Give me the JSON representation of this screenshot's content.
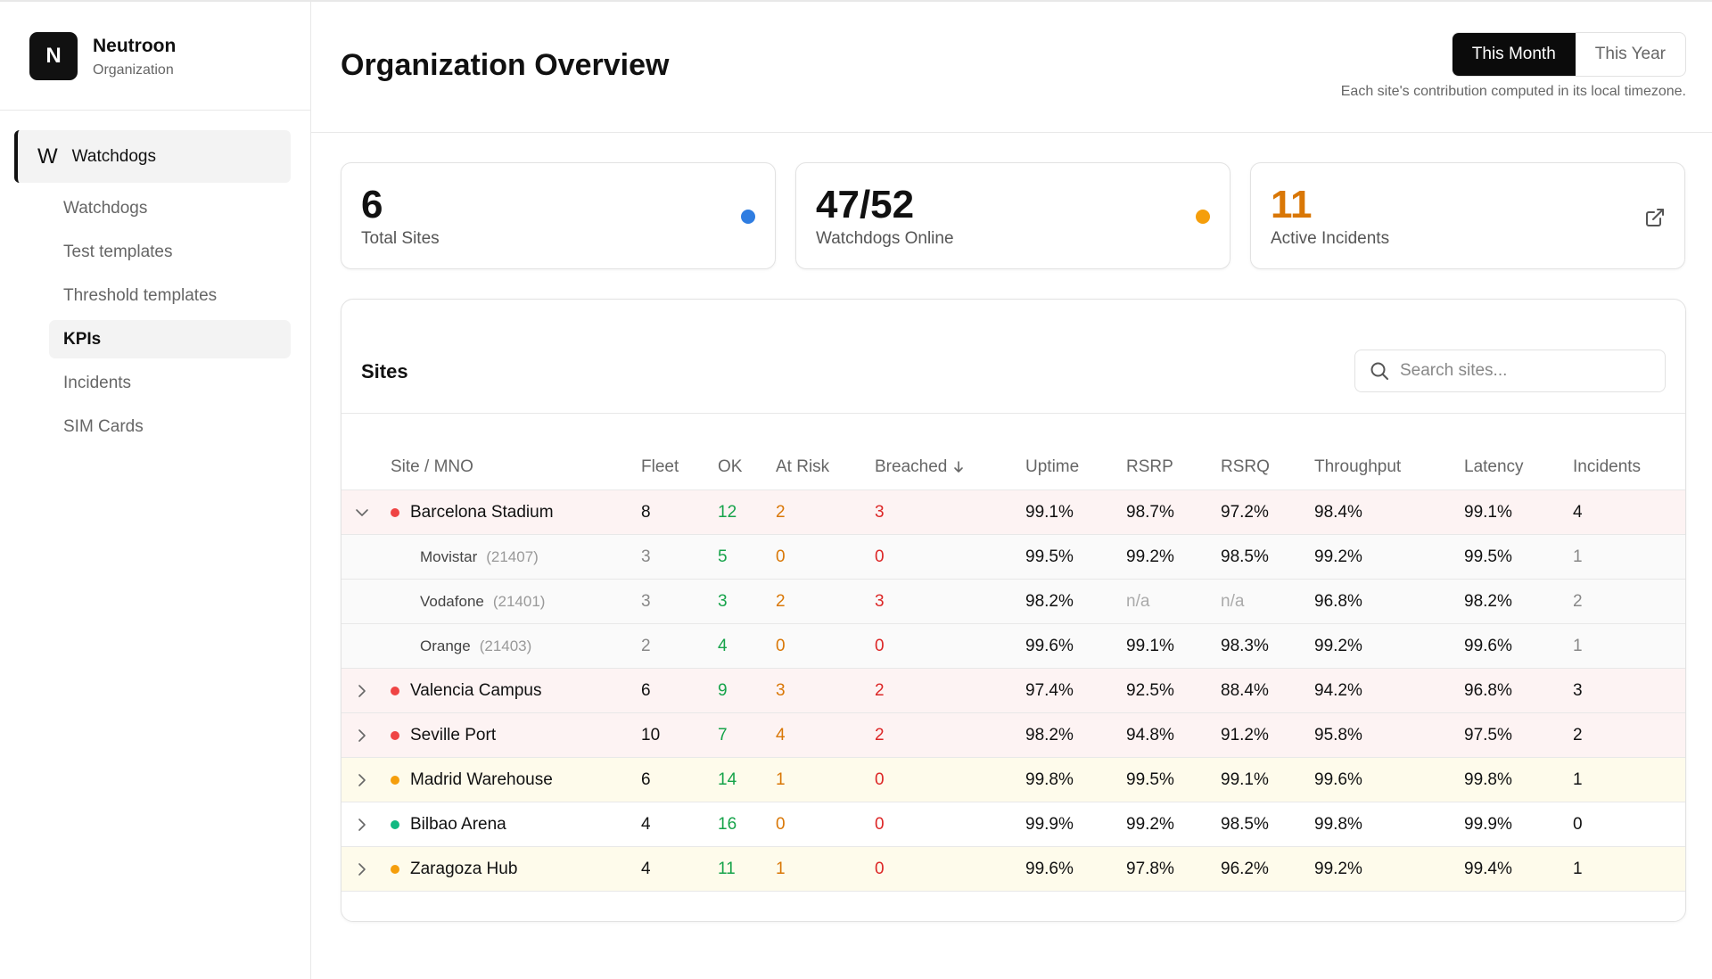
{
  "sidebar": {
    "logo": "N",
    "org_name": "Neutroon",
    "org_subtitle": "Organization",
    "group": {
      "icon": "W",
      "label": "Watchdogs"
    },
    "items": [
      "Watchdogs",
      "Test templates",
      "Threshold templates",
      "KPIs",
      "Incidents",
      "SIM Cards"
    ],
    "active_item": 3
  },
  "header": {
    "title": "Organization Overview",
    "toggle": [
      "This Month",
      "This Year"
    ],
    "active_toggle": 0,
    "note": "Each site's contribution computed in its local timezone."
  },
  "stats": [
    {
      "value": "6",
      "label": "Total Sites",
      "icon": "dot",
      "accent": "#2f7de1",
      "value_color": "#111111"
    },
    {
      "value": "47/52",
      "label": "Watchdogs Online",
      "icon": "dot",
      "accent": "#f59e0b",
      "value_color": "#111111"
    },
    {
      "value": "11",
      "label": "Active Incidents",
      "icon": "link",
      "accent": "#555555",
      "value_color": "#d97706"
    }
  ],
  "table": {
    "title": "Sites",
    "search_placeholder": "Search sites...",
    "columns": [
      {
        "label": "Site / MNO"
      },
      {
        "label": "Fleet"
      },
      {
        "label": "OK",
        "color": "#16a34a"
      },
      {
        "label": "At Risk",
        "color": "#d97706"
      },
      {
        "label": "Breached",
        "color": "#dc2626",
        "sort": "desc"
      },
      {
        "label": "Uptime"
      },
      {
        "label": "RSRP"
      },
      {
        "label": "RSRQ"
      },
      {
        "label": "Throughput"
      },
      {
        "label": "Latency"
      },
      {
        "label": "Incidents"
      }
    ],
    "rows": [
      {
        "name": "Barcelona Stadium",
        "status": "#ef4444",
        "background": "#fdf3f3",
        "expanded": true,
        "cells": [
          "8",
          "12",
          "2",
          "3",
          "99.1%",
          "98.7%",
          "97.2%",
          "98.4%",
          "99.1%",
          "4"
        ],
        "children": [
          {
            "name": "Movistar",
            "code": "(21407)",
            "cells": [
              "3",
              "5",
              "0",
              "0",
              "99.5%",
              "99.2%",
              "98.5%",
              "99.2%",
              "99.5%",
              "1"
            ]
          },
          {
            "name": "Vodafone",
            "code": "(21401)",
            "cells": [
              "3",
              "3",
              "2",
              "3",
              "98.2%",
              "n/a",
              "n/a",
              "96.8%",
              "98.2%",
              "2"
            ]
          },
          {
            "name": "Orange",
            "code": "(21403)",
            "cells": [
              "2",
              "4",
              "0",
              "0",
              "99.6%",
              "99.1%",
              "98.3%",
              "99.2%",
              "99.6%",
              "1"
            ]
          }
        ]
      },
      {
        "name": "Valencia Campus",
        "status": "#ef4444",
        "background": "#fdf3f3",
        "expanded": false,
        "cells": [
          "6",
          "9",
          "3",
          "2",
          "97.4%",
          "92.5%",
          "88.4%",
          "94.2%",
          "96.8%",
          "3"
        ]
      },
      {
        "name": "Seville Port",
        "status": "#ef4444",
        "background": "#fdf3f3",
        "expanded": false,
        "cells": [
          "10",
          "7",
          "4",
          "2",
          "98.2%",
          "94.8%",
          "91.2%",
          "95.8%",
          "97.5%",
          "2"
        ]
      },
      {
        "name": "Madrid Warehouse",
        "status": "#f59e0b",
        "background": "#fefbeb",
        "expanded": false,
        "cells": [
          "6",
          "14",
          "1",
          "0",
          "99.8%",
          "99.5%",
          "99.1%",
          "99.6%",
          "99.8%",
          "1"
        ]
      },
      {
        "name": "Bilbao Arena",
        "status": "#10b981",
        "background": "#ffffff",
        "expanded": false,
        "cells": [
          "4",
          "16",
          "0",
          "0",
          "99.9%",
          "99.2%",
          "98.5%",
          "99.8%",
          "99.9%",
          "0"
        ]
      },
      {
        "name": "Zaragoza Hub",
        "status": "#f59e0b",
        "background": "#fefbeb",
        "expanded": false,
        "cells": [
          "4",
          "11",
          "1",
          "0",
          "99.6%",
          "97.8%",
          "96.2%",
          "99.2%",
          "99.4%",
          "1"
        ]
      }
    ]
  }
}
